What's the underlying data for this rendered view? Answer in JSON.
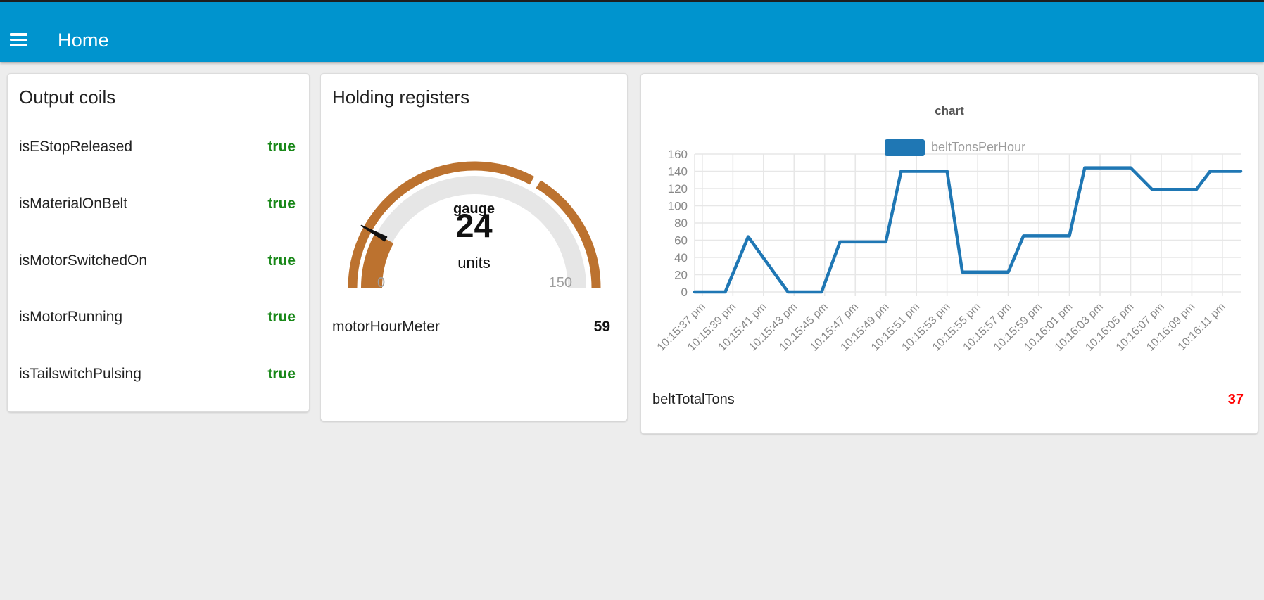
{
  "header": {
    "title": "Home",
    "bar_color": "#0094ce",
    "menu_icon": "hamburger-icon"
  },
  "colors": {
    "page_background": "#ededed",
    "true_green": "#178717",
    "alert_red": "#ff0000",
    "series_blue": "#1f77b4",
    "gauge_arc": "#bc722f",
    "gauge_track": "#e6e6e6",
    "grid_gray": "#e7e7e7",
    "axis_text_gray": "#888888"
  },
  "cards": {
    "output_coils": {
      "title": "Output coils",
      "rows": [
        {
          "label": "isEStopReleased",
          "value": "true"
        },
        {
          "label": "isMaterialOnBelt",
          "value": "true"
        },
        {
          "label": "isMotorSwitchedOn",
          "value": "true"
        },
        {
          "label": "isMotorRunning",
          "value": "true"
        },
        {
          "label": "isTailswitchPulsing",
          "value": "true"
        }
      ]
    },
    "holding_registers": {
      "title": "Holding registers",
      "gauge": {
        "title": "gauge",
        "value": 24,
        "units": "units",
        "min": 0,
        "max": 150,
        "min_label": "0",
        "max_label": "150",
        "seam_value": 100,
        "arc_color": "#bc722f",
        "track_color": "#e6e6e6",
        "needle_color": "#111111"
      },
      "row": {
        "label": "motorHourMeter",
        "value": "59"
      }
    },
    "chart_card": {
      "row": {
        "label": "beltTotalTons",
        "value": "37",
        "value_color": "#ff0000"
      }
    }
  },
  "chart_data": {
    "type": "line",
    "title": "chart",
    "legend": [
      {
        "label": "beltTonsPerHour",
        "color": "#1f77b4"
      }
    ],
    "legend_position": "top",
    "grid": true,
    "x_unit": "seconds after 10:15:00 pm",
    "xlim": [
      36.5,
      72.2
    ],
    "ylim": [
      0,
      160
    ],
    "y_ticks": [
      0,
      20,
      40,
      60,
      80,
      100,
      120,
      140,
      160
    ],
    "x_ticks": [
      {
        "t": 37,
        "label": "10:15:37 pm"
      },
      {
        "t": 39,
        "label": "10:15:39 pm"
      },
      {
        "t": 41,
        "label": "10:15:41 pm"
      },
      {
        "t": 43,
        "label": "10:15:43 pm"
      },
      {
        "t": 45,
        "label": "10:15:45 pm"
      },
      {
        "t": 47,
        "label": "10:15:47 pm"
      },
      {
        "t": 49,
        "label": "10:15:49 pm"
      },
      {
        "t": 51,
        "label": "10:15:51 pm"
      },
      {
        "t": 53,
        "label": "10:15:53 pm"
      },
      {
        "t": 55,
        "label": "10:15:55 pm"
      },
      {
        "t": 57,
        "label": "10:15:57 pm"
      },
      {
        "t": 59,
        "label": "10:15:59 pm"
      },
      {
        "t": 61,
        "label": "10:16:01 pm"
      },
      {
        "t": 63,
        "label": "10:16:03 pm"
      },
      {
        "t": 65,
        "label": "10:16:05 pm"
      },
      {
        "t": 67,
        "label": "10:16:07 pm"
      },
      {
        "t": 69,
        "label": "10:16:09 pm"
      },
      {
        "t": 71,
        "label": "10:16:11 pm"
      }
    ],
    "series": [
      {
        "name": "beltTonsPerHour",
        "color": "#1f77b4",
        "points": [
          [
            36.5,
            0
          ],
          [
            38.5,
            0
          ],
          [
            40,
            64
          ],
          [
            42.6,
            0
          ],
          [
            44.8,
            0
          ],
          [
            46,
            58
          ],
          [
            49,
            58
          ],
          [
            50,
            140
          ],
          [
            53,
            140
          ],
          [
            54,
            23
          ],
          [
            57,
            23
          ],
          [
            58,
            65
          ],
          [
            61,
            65
          ],
          [
            62,
            144
          ],
          [
            65,
            144
          ],
          [
            66.4,
            119
          ],
          [
            69.3,
            119
          ],
          [
            70.2,
            140
          ],
          [
            72.2,
            140
          ]
        ]
      }
    ]
  }
}
